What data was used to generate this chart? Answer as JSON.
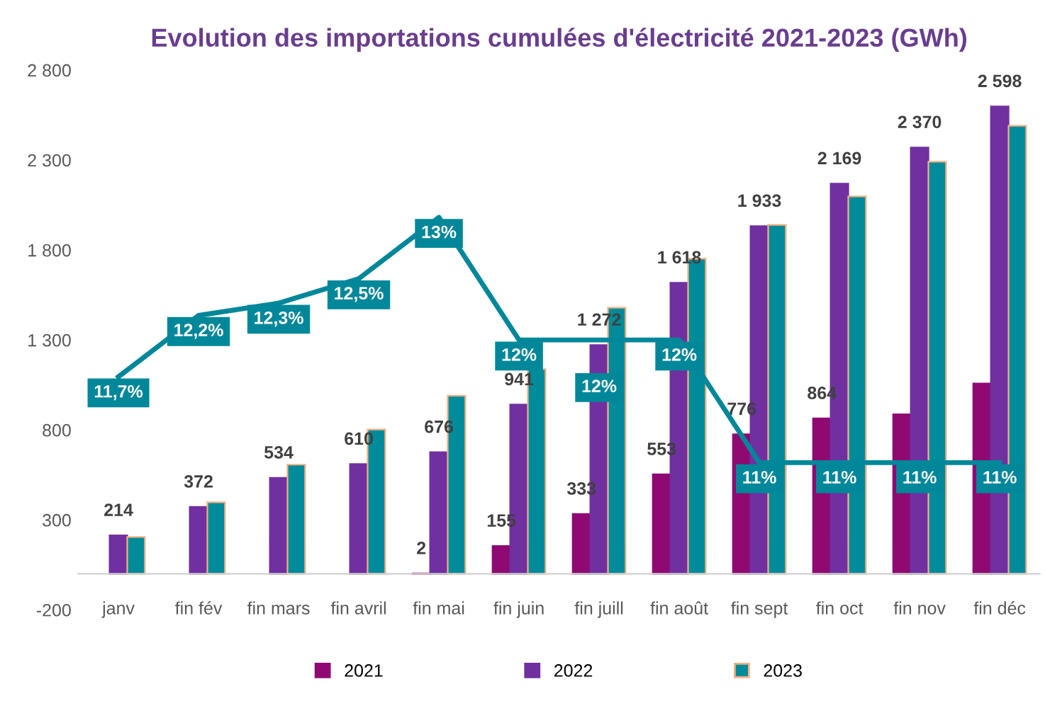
{
  "chart_data": {
    "type": "bar",
    "title": "Evolution des importations cumulées d'électricité 2021-2023 (GWh)",
    "categories": [
      "janv",
      "fin fév",
      "fin mars",
      "fin avril",
      "fin mai",
      "fin juin",
      "fin juill",
      "fin août",
      "fin sept",
      "fin oct",
      "fin nov",
      "fin déc"
    ],
    "series": [
      {
        "name": "2021",
        "color": "#8e0a72",
        "values": [
          null,
          null,
          null,
          null,
          2,
          155,
          333,
          553,
          776,
          864,
          887,
          1058
        ],
        "value_labels": [
          null,
          null,
          null,
          null,
          "2",
          "155",
          "333",
          "553",
          "776",
          "864",
          null,
          null
        ]
      },
      {
        "name": "2022",
        "color": "#7030a0",
        "values": [
          214,
          372,
          534,
          610,
          676,
          941,
          1272,
          1618,
          1933,
          2169,
          2370,
          2598
        ],
        "value_labels": [
          "214",
          "372",
          "534",
          "610",
          "676",
          "941",
          "1 272",
          "1 618",
          "1 933",
          "2 169",
          "2 370",
          "2 598"
        ]
      },
      {
        "name": "2023",
        "color": "#008b9a",
        "values": [
          205,
          398,
          607,
          802,
          990,
          1138,
          1479,
          1752,
          1940,
          2098,
          2291,
          2491
        ]
      },
      {
        "type": "line",
        "axis": "y2",
        "color": "#00879a",
        "values": [
          11.7,
          12.2,
          12.3,
          12.5,
          13,
          12,
          12,
          12,
          11,
          11,
          11,
          11
        ],
        "value_labels": [
          "11,7%",
          "12,2%",
          "12,3%",
          "12,5%",
          "13%",
          "12%",
          "12%",
          "12%",
          "11%",
          "11%",
          "11%",
          "11%"
        ]
      }
    ],
    "ylim": [
      -200,
      2800
    ],
    "yticks": [
      {
        "value": -200,
        "label": "-200"
      },
      {
        "value": 300,
        "label": "300"
      },
      {
        "value": 800,
        "label": "800"
      },
      {
        "value": 1300,
        "label": "1 300"
      },
      {
        "value": 1800,
        "label": "1 800"
      },
      {
        "value": 2300,
        "label": "2 300"
      },
      {
        "value": 2800,
        "label": "2 800"
      }
    ],
    "grid": false,
    "legend": "bottom"
  }
}
